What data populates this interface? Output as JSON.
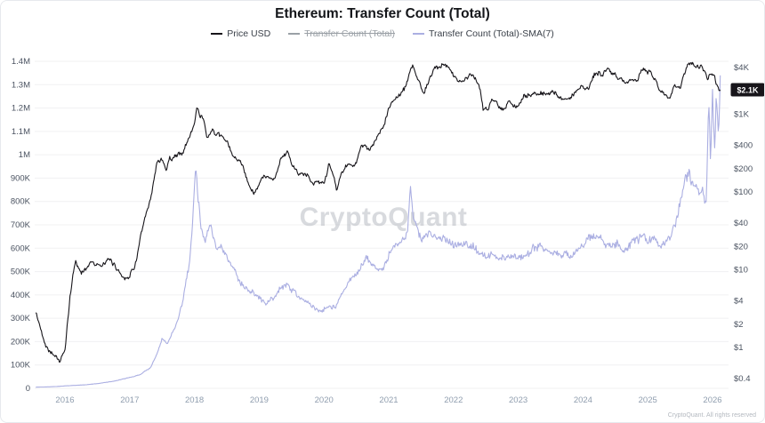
{
  "title": "Ethereum: Transfer Count (Total)",
  "watermark": "CryptoQuant",
  "footer": "CryptoQuant. All rights reserved",
  "legend": [
    {
      "label": "Price USD",
      "color": "#17151a",
      "disabled": false
    },
    {
      "label": "Transfer Count (Total)",
      "color": "#9aa0a6",
      "disabled": true
    },
    {
      "label": "Transfer Count (Total)-SMA(7)",
      "color": "#abafe2",
      "disabled": false
    }
  ],
  "colors": {
    "price_line": "#17151a",
    "sma_line": "#abafe2",
    "grid": "#f0f0f2",
    "axis_text": "#4a5260",
    "x_axis_text": "#8f9dae",
    "badge_bg": "#17151a",
    "badge_text": "#ffffff",
    "watermark": "#9aa0aa"
  },
  "chart_data": {
    "type": "line",
    "title": "Ethereum: Transfer Count (Total)",
    "x_axis": {
      "ticks": [
        [
          2016,
          "2016"
        ],
        [
          2017,
          "2017"
        ],
        [
          2018,
          "2018"
        ],
        [
          2019,
          "2019"
        ],
        [
          2020,
          "2020"
        ],
        [
          2021,
          "2021"
        ],
        [
          2022,
          "2022"
        ],
        [
          2023,
          "2023"
        ],
        [
          2024,
          "2024"
        ],
        [
          2025,
          "2025"
        ],
        [
          2026,
          "2026"
        ]
      ],
      "range": [
        2015.53,
        2026.25
      ]
    },
    "left_axis": {
      "scale": "linear",
      "min": 0,
      "max": 1400000,
      "ticks": [
        [
          1400000,
          "1.4M"
        ],
        [
          1300000,
          "1.3M"
        ],
        [
          1200000,
          "1.2M"
        ],
        [
          1100000,
          "1.1M"
        ],
        [
          1000000,
          "1M"
        ],
        [
          900000,
          "900K"
        ],
        [
          800000,
          "800K"
        ],
        [
          700000,
          "700K"
        ],
        [
          600000,
          "600K"
        ],
        [
          500000,
          "500K"
        ],
        [
          400000,
          "400K"
        ],
        [
          300000,
          "300K"
        ],
        [
          200000,
          "200K"
        ],
        [
          100000,
          "100K"
        ],
        [
          0,
          "0"
        ]
      ]
    },
    "right_axis": {
      "scale": "log",
      "top_value": 4000,
      "bottom_value": 0.4,
      "ticks": [
        [
          4000,
          "$4K"
        ],
        [
          1000,
          "$1K"
        ],
        [
          400,
          "$400"
        ],
        [
          200,
          "$200"
        ],
        [
          100,
          "$100"
        ],
        [
          40,
          "$40"
        ],
        [
          20,
          "$20"
        ],
        [
          10,
          "$10"
        ],
        [
          4,
          "$4"
        ],
        [
          2,
          "$2"
        ],
        [
          1,
          "$1"
        ],
        [
          0.4,
          "$0.4"
        ]
      ],
      "last_value": {
        "value": 2070,
        "label": "$2.1K"
      }
    },
    "series": [
      {
        "name": "Price USD",
        "axis": "right",
        "color": "#17151a",
        "points": [
          [
            2015.55,
            2.8
          ],
          [
            2015.7,
            1.1
          ],
          [
            2015.82,
            0.9
          ],
          [
            2015.92,
            0.65
          ],
          [
            2016.0,
            0.95
          ],
          [
            2016.08,
            4.5
          ],
          [
            2016.16,
            13
          ],
          [
            2016.25,
            9
          ],
          [
            2016.33,
            11
          ],
          [
            2016.42,
            13.5
          ],
          [
            2016.5,
            12
          ],
          [
            2016.58,
            11
          ],
          [
            2016.67,
            12.5
          ],
          [
            2016.75,
            11.5
          ],
          [
            2016.83,
            9.8
          ],
          [
            2016.92,
            8
          ],
          [
            2017.0,
            9.5
          ],
          [
            2017.08,
            12
          ],
          [
            2017.17,
            28
          ],
          [
            2017.25,
            48
          ],
          [
            2017.33,
            85
          ],
          [
            2017.42,
            230
          ],
          [
            2017.5,
            280
          ],
          [
            2017.56,
            200
          ],
          [
            2017.62,
            300
          ],
          [
            2017.67,
            290
          ],
          [
            2017.75,
            300
          ],
          [
            2017.83,
            330
          ],
          [
            2017.92,
            480
          ],
          [
            2018.0,
            760
          ],
          [
            2018.04,
            1300
          ],
          [
            2018.09,
            900
          ],
          [
            2018.14,
            850
          ],
          [
            2018.2,
            520
          ],
          [
            2018.28,
            680
          ],
          [
            2018.33,
            580
          ],
          [
            2018.42,
            480
          ],
          [
            2018.5,
            450
          ],
          [
            2018.58,
            290
          ],
          [
            2018.67,
            230
          ],
          [
            2018.75,
            205
          ],
          [
            2018.83,
            130
          ],
          [
            2018.92,
            90
          ],
          [
            2019.0,
            110
          ],
          [
            2019.08,
            140
          ],
          [
            2019.17,
            140
          ],
          [
            2019.25,
            165
          ],
          [
            2019.33,
            260
          ],
          [
            2019.44,
            310
          ],
          [
            2019.5,
            220
          ],
          [
            2019.58,
            185
          ],
          [
            2019.67,
            185
          ],
          [
            2019.75,
            180
          ],
          [
            2019.83,
            150
          ],
          [
            2019.92,
            132
          ],
          [
            2020.0,
            145
          ],
          [
            2020.08,
            225
          ],
          [
            2020.16,
            150
          ],
          [
            2020.2,
            112
          ],
          [
            2020.25,
            170
          ],
          [
            2020.33,
            210
          ],
          [
            2020.42,
            235
          ],
          [
            2020.5,
            240
          ],
          [
            2020.58,
            390
          ],
          [
            2020.67,
            360
          ],
          [
            2020.75,
            385
          ],
          [
            2020.83,
            480
          ],
          [
            2020.92,
            640
          ],
          [
            2021.0,
            1150
          ],
          [
            2021.08,
            1550
          ],
          [
            2021.17,
            1750
          ],
          [
            2021.25,
            2150
          ],
          [
            2021.33,
            3400
          ],
          [
            2021.37,
            4100
          ],
          [
            2021.45,
            2400
          ],
          [
            2021.53,
            1900
          ],
          [
            2021.58,
            2300
          ],
          [
            2021.67,
            3300
          ],
          [
            2021.72,
            3900
          ],
          [
            2021.79,
            4250
          ],
          [
            2021.85,
            4650
          ],
          [
            2021.92,
            4050
          ],
          [
            2022.0,
            3350
          ],
          [
            2022.08,
            2700
          ],
          [
            2022.17,
            2950
          ],
          [
            2022.25,
            3350
          ],
          [
            2022.33,
            2850
          ],
          [
            2022.42,
            1950
          ],
          [
            2022.46,
            1080
          ],
          [
            2022.54,
            1130
          ],
          [
            2022.6,
            1700
          ],
          [
            2022.67,
            1550
          ],
          [
            2022.72,
            1330
          ],
          [
            2022.79,
            1300
          ],
          [
            2022.86,
            1600
          ],
          [
            2022.92,
            1200
          ],
          [
            2023.0,
            1230
          ],
          [
            2023.08,
            1620
          ],
          [
            2023.17,
            1700
          ],
          [
            2023.25,
            1850
          ],
          [
            2023.33,
            1880
          ],
          [
            2023.42,
            1820
          ],
          [
            2023.5,
            1930
          ],
          [
            2023.58,
            1850
          ],
          [
            2023.67,
            1640
          ],
          [
            2023.75,
            1630
          ],
          [
            2023.83,
            1800
          ],
          [
            2023.92,
            2080
          ],
          [
            2024.0,
            2320
          ],
          [
            2024.08,
            2350
          ],
          [
            2024.17,
            3450
          ],
          [
            2024.25,
            3550
          ],
          [
            2024.3,
            3050
          ],
          [
            2024.38,
            3800
          ],
          [
            2024.46,
            3500
          ],
          [
            2024.54,
            3150
          ],
          [
            2024.62,
            2550
          ],
          [
            2024.67,
            2450
          ],
          [
            2024.75,
            2650
          ],
          [
            2024.83,
            2480
          ],
          [
            2024.9,
            3700
          ],
          [
            2024.96,
            3450
          ],
          [
            2025.0,
            3350
          ],
          [
            2025.06,
            3150
          ],
          [
            2025.12,
            2650
          ],
          [
            2025.17,
            2250
          ],
          [
            2025.25,
            1870
          ],
          [
            2025.33,
            1800
          ],
          [
            2025.42,
            2550
          ],
          [
            2025.5,
            2480
          ],
          [
            2025.58,
            3650
          ],
          [
            2025.63,
            4350
          ],
          [
            2025.67,
            4550
          ],
          [
            2025.72,
            4200
          ],
          [
            2025.78,
            4450
          ],
          [
            2025.83,
            4300
          ],
          [
            2025.88,
            3850
          ],
          [
            2025.92,
            3100
          ],
          [
            2025.96,
            3400
          ],
          [
            2026.0,
            3300
          ],
          [
            2026.04,
            2950
          ],
          [
            2026.08,
            2250
          ],
          [
            2026.12,
            2070
          ]
        ]
      },
      {
        "name": "Transfer Count (Total)-SMA(7)",
        "axis": "left",
        "color": "#abafe2",
        "points": [
          [
            2015.55,
            5000
          ],
          [
            2015.8,
            7000
          ],
          [
            2016.0,
            10000
          ],
          [
            2016.25,
            14000
          ],
          [
            2016.5,
            20000
          ],
          [
            2016.75,
            30000
          ],
          [
            2016.92,
            40000
          ],
          [
            2017.0,
            46000
          ],
          [
            2017.17,
            60000
          ],
          [
            2017.33,
            92000
          ],
          [
            2017.42,
            145000
          ],
          [
            2017.5,
            215000
          ],
          [
            2017.58,
            185000
          ],
          [
            2017.67,
            245000
          ],
          [
            2017.75,
            295000
          ],
          [
            2017.83,
            375000
          ],
          [
            2017.92,
            530000
          ],
          [
            2017.97,
            720000
          ],
          [
            2018.02,
            960000
          ],
          [
            2018.06,
            830000
          ],
          [
            2018.1,
            700000
          ],
          [
            2018.17,
            660000
          ],
          [
            2018.25,
            690000
          ],
          [
            2018.33,
            620000
          ],
          [
            2018.42,
            590000
          ],
          [
            2018.5,
            545000
          ],
          [
            2018.58,
            505000
          ],
          [
            2018.67,
            472000
          ],
          [
            2018.75,
            452000
          ],
          [
            2018.83,
            432000
          ],
          [
            2018.92,
            402000
          ],
          [
            2019.0,
            382000
          ],
          [
            2019.08,
            366000
          ],
          [
            2019.17,
            376000
          ],
          [
            2019.25,
            396000
          ],
          [
            2019.33,
            422000
          ],
          [
            2019.42,
            446000
          ],
          [
            2019.5,
            426000
          ],
          [
            2019.58,
            402000
          ],
          [
            2019.67,
            386000
          ],
          [
            2019.75,
            366000
          ],
          [
            2019.83,
            346000
          ],
          [
            2019.92,
            336000
          ],
          [
            2020.0,
            346000
          ],
          [
            2020.08,
            366000
          ],
          [
            2020.17,
            356000
          ],
          [
            2020.25,
            386000
          ],
          [
            2020.33,
            426000
          ],
          [
            2020.42,
            456000
          ],
          [
            2020.5,
            486000
          ],
          [
            2020.58,
            526000
          ],
          [
            2020.67,
            546000
          ],
          [
            2020.75,
            526000
          ],
          [
            2020.83,
            506000
          ],
          [
            2020.92,
            516000
          ],
          [
            2021.0,
            556000
          ],
          [
            2021.08,
            586000
          ],
          [
            2021.17,
            606000
          ],
          [
            2021.25,
            656000
          ],
          [
            2021.3,
            740000
          ],
          [
            2021.34,
            905000
          ],
          [
            2021.38,
            760000
          ],
          [
            2021.42,
            706000
          ],
          [
            2021.5,
            626000
          ],
          [
            2021.58,
            646000
          ],
          [
            2021.67,
            636000
          ],
          [
            2021.75,
            656000
          ],
          [
            2021.83,
            666000
          ],
          [
            2021.92,
            646000
          ],
          [
            2022.0,
            636000
          ],
          [
            2022.17,
            616000
          ],
          [
            2022.33,
            606000
          ],
          [
            2022.5,
            566000
          ],
          [
            2022.67,
            556000
          ],
          [
            2022.83,
            576000
          ],
          [
            2023.0,
            556000
          ],
          [
            2023.17,
            586000
          ],
          [
            2023.33,
            626000
          ],
          [
            2023.5,
            596000
          ],
          [
            2023.67,
            566000
          ],
          [
            2023.83,
            576000
          ],
          [
            2024.0,
            596000
          ],
          [
            2024.17,
            656000
          ],
          [
            2024.33,
            626000
          ],
          [
            2024.5,
            636000
          ],
          [
            2024.67,
            616000
          ],
          [
            2024.83,
            636000
          ],
          [
            2025.0,
            646000
          ],
          [
            2025.17,
            606000
          ],
          [
            2025.33,
            656000
          ],
          [
            2025.42,
            706000
          ],
          [
            2025.5,
            806000
          ],
          [
            2025.58,
            906000
          ],
          [
            2025.64,
            956000
          ],
          [
            2025.7,
            886000
          ],
          [
            2025.75,
            916000
          ],
          [
            2025.8,
            846000
          ],
          [
            2025.85,
            876000
          ],
          [
            2025.9,
            826000
          ],
          [
            2025.94,
            1280000
          ],
          [
            2025.97,
            956000
          ],
          [
            2026.0,
            1320000
          ],
          [
            2026.03,
            1000000
          ],
          [
            2026.06,
            1260000
          ],
          [
            2026.09,
            1090000
          ],
          [
            2026.12,
            1340000
          ]
        ]
      }
    ],
    "disabled_series": [
      "Transfer Count (Total)"
    ]
  }
}
